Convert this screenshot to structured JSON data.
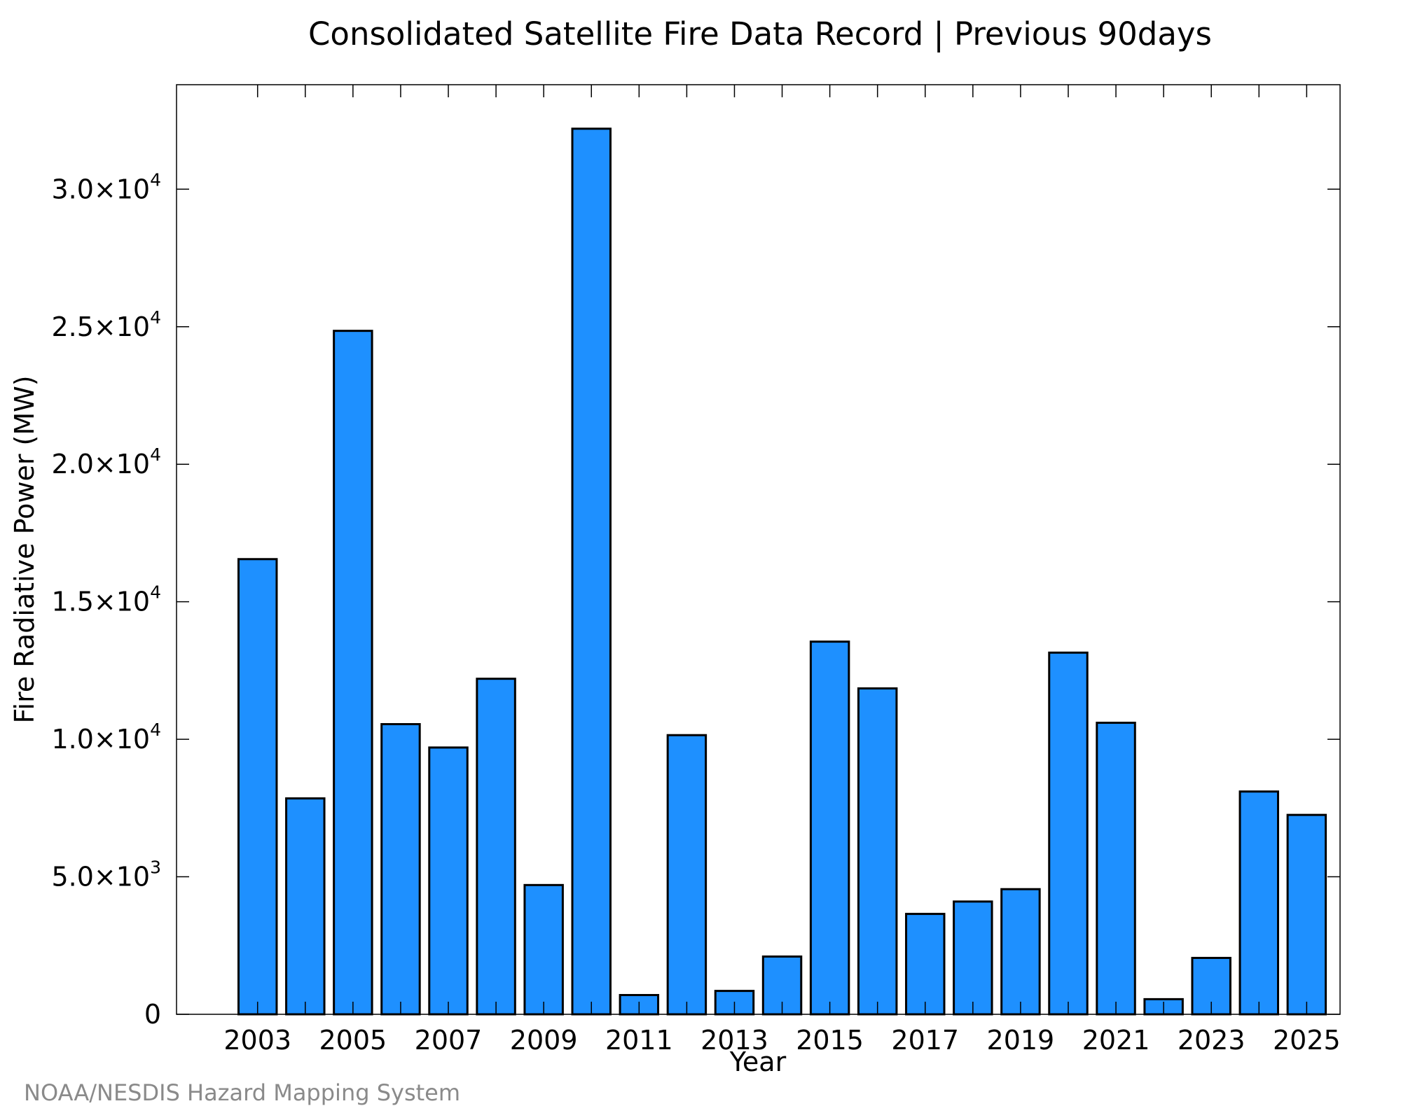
{
  "chart_data": {
    "type": "bar",
    "title": "Consolidated Satellite Fire Data Record | Previous 90days",
    "xlabel": "Year",
    "ylabel": "Fire Radiative Power (MW)",
    "categories": [
      "2003",
      "2004",
      "2005",
      "2006",
      "2007",
      "2008",
      "2009",
      "2010",
      "2011",
      "2012",
      "2013",
      "2014",
      "2015",
      "2016",
      "2017",
      "2018",
      "2019",
      "2020",
      "2021",
      "2022",
      "2023",
      "2024",
      "2025"
    ],
    "values": [
      16550,
      7850,
      24850,
      10550,
      9700,
      12200,
      4700,
      32200,
      700,
      10150,
      850,
      2100,
      13550,
      11850,
      3650,
      4100,
      4550,
      13150,
      10600,
      550,
      2050,
      8100,
      7250
    ],
    "x_tick_labels": [
      "2003",
      "2005",
      "2007",
      "2009",
      "2011",
      "2013",
      "2015",
      "2017",
      "2019",
      "2021",
      "2023",
      "2025"
    ],
    "y_ticks": [
      {
        "value": 0,
        "mantissa": "0",
        "exponent": ""
      },
      {
        "value": 5000,
        "mantissa": "5.0×10",
        "exponent": "3"
      },
      {
        "value": 10000,
        "mantissa": "1.0×10",
        "exponent": "4"
      },
      {
        "value": 15000,
        "mantissa": "1.5×10",
        "exponent": "4"
      },
      {
        "value": 20000,
        "mantissa": "2.0×10",
        "exponent": "4"
      },
      {
        "value": 25000,
        "mantissa": "2.5×10",
        "exponent": "4"
      },
      {
        "value": 30000,
        "mantissa": "3.0×10",
        "exponent": "4"
      }
    ],
    "ylim": [
      0,
      33800
    ],
    "xlim": [
      2001.3,
      2025.7
    ],
    "grid": false,
    "legend": "none",
    "bar_color": "#1e90ff",
    "bar_edge_color": "#000000"
  },
  "credit": "NOAA/NESDIS Hazard Mapping System"
}
